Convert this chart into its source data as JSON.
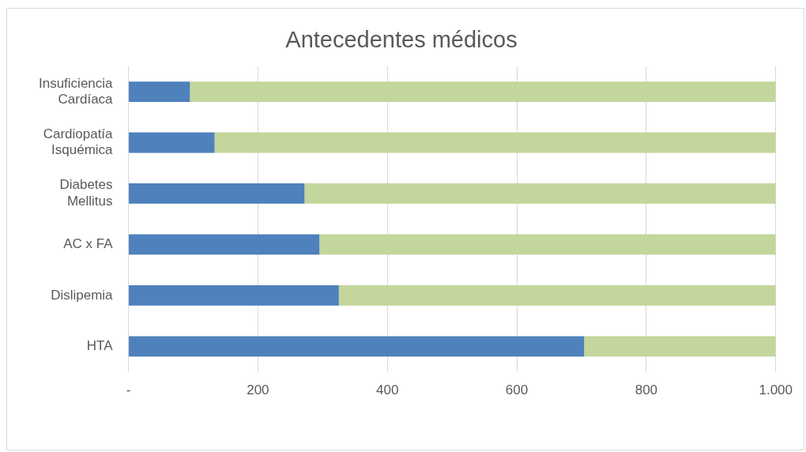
{
  "chart_data": {
    "type": "bar",
    "title": "Antecedentes médicos",
    "orientation": "horizontal",
    "stacked": true,
    "categories": [
      "Insuficiencia Cardíaca",
      "Cardiopatía Isquémica",
      "Diabetes Mellitus",
      "AC x FA",
      "Dislipemia",
      "HTA"
    ],
    "series": [
      {
        "color": "#4f81bd",
        "values": [
          95,
          133,
          272,
          295,
          325,
          704
        ]
      },
      {
        "color": "#c3d69b",
        "values": [
          905,
          867,
          728,
          705,
          675,
          296
        ]
      }
    ],
    "xlim": [
      0,
      1000
    ],
    "xticks": [
      {
        "value": 0,
        "label": "-"
      },
      200,
      400,
      600,
      800,
      {
        "value": 1000,
        "label": "1.000"
      }
    ],
    "grid": "x",
    "legend": false
  }
}
